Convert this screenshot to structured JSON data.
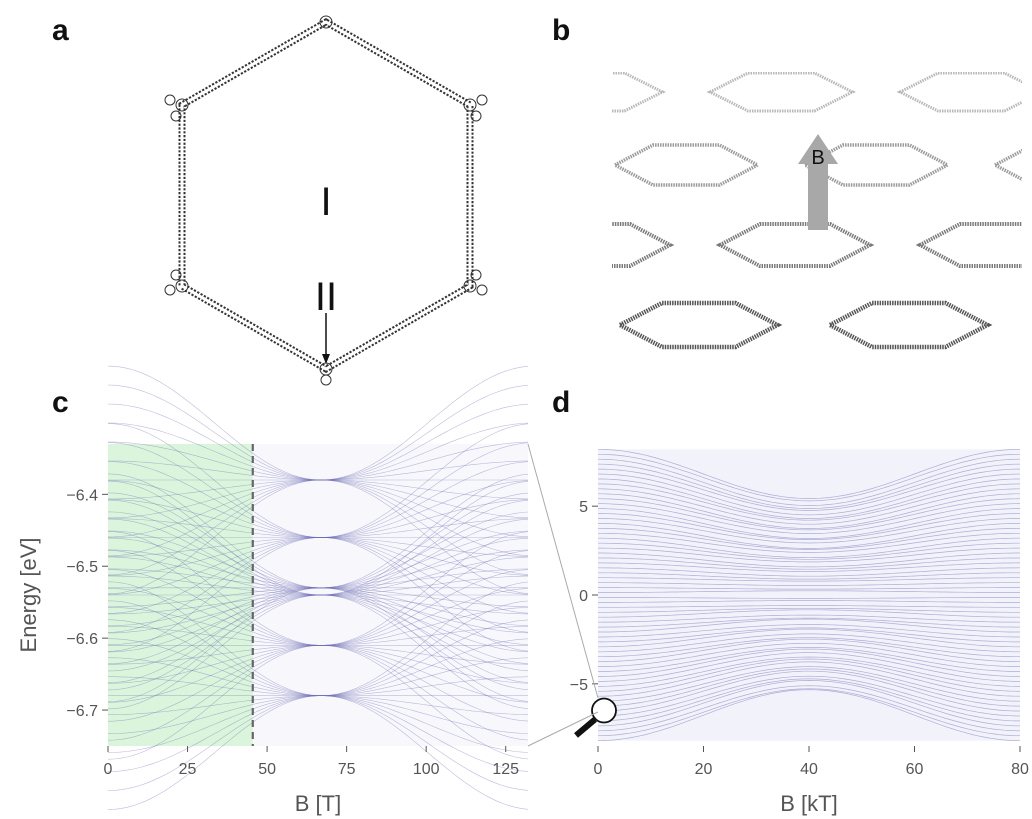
{
  "panels": {
    "a": {
      "letter": "a",
      "label_i": "I",
      "label_ii": "II"
    },
    "b": {
      "letter": "b",
      "arrow_label": "B",
      "arrow_color": "#a8a8a8"
    },
    "c": {
      "letter": "c"
    },
    "d": {
      "letter": "d"
    }
  },
  "colors": {
    "band": "#6a6ab4",
    "shade": "#d6f5d6",
    "dashed": "#666666"
  },
  "chart_data": [
    {
      "type": "line",
      "xlabel": "B [T]",
      "ylabel": "Energy [eV]",
      "xlim": [
        0,
        132
      ],
      "ylim": [
        -6.75,
        -6.33
      ],
      "xticks": [
        0,
        25,
        50,
        75,
        100,
        125
      ],
      "yticks": [
        -6.4,
        -6.5,
        -6.6,
        -6.7
      ],
      "shaded_region_x": [
        0,
        45.5
      ],
      "dashed_line_x": 45.5,
      "grid": false,
      "symmetry_center_x": 67
    },
    {
      "type": "line",
      "xlabel": "B [kT]",
      "ylabel": "",
      "xlim": [
        0,
        80
      ],
      "ylim": [
        -8.5,
        8.5
      ],
      "xticks": [
        0,
        20,
        40,
        60,
        80
      ],
      "yticks": [
        5,
        0,
        -5
      ],
      "band_edges": [
        -8.2,
        8.2
      ],
      "gaps_at_x": 40,
      "grid": false,
      "magnifier_at": [
        0,
        -6.5
      ]
    }
  ]
}
